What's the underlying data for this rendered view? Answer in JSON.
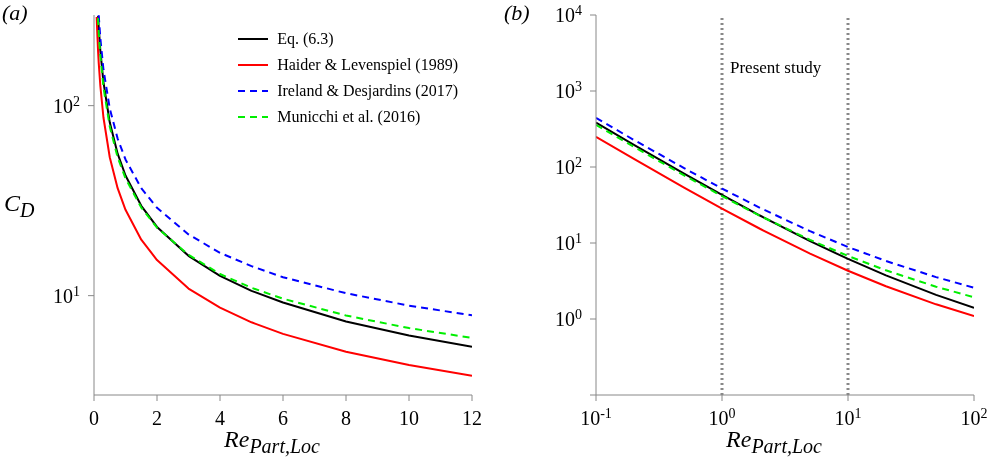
{
  "chart_data": [
    {
      "type": "line",
      "title": "(a)",
      "xlabel": "Re$_{Part,Loc}$",
      "ylabel": "C$_{D}$",
      "log": "y",
      "legend": "top right",
      "xlim": [
        0,
        12
      ],
      "xticks": [
        0,
        2,
        4,
        6,
        8,
        10,
        12
      ],
      "ylim": [
        3,
        300
      ],
      "yticks": [
        {
          "value": 10,
          "label": "10$^{1}$"
        },
        {
          "value": 100,
          "label": "10$^{2}$"
        }
      ],
      "series": [
        {
          "name": "Eq. (6.3)",
          "color": "#000000",
          "line_style": "solid",
          "x": [
            0.13,
            0.15,
            0.2,
            0.3,
            0.5,
            0.75,
            1,
            1.5,
            2,
            3,
            4,
            5,
            6,
            8,
            10,
            12
          ],
          "values": [
            297,
            259,
            196,
            133,
            81.7,
            55.9,
            42.9,
            29.7,
            23.0,
            16.2,
            12.7,
            10.6,
            9.2,
            7.31,
            6.17,
            5.38
          ]
        },
        {
          "name": "Haider & Levenspiel (1989)",
          "color": "#ff0000",
          "line_style": "solid",
          "x": [
            0.085,
            0.1,
            0.13,
            0.15,
            0.2,
            0.3,
            0.5,
            0.75,
            1,
            1.5,
            2,
            3,
            4,
            5,
            6,
            8,
            10,
            12
          ],
          "values": [
            293,
            250,
            193,
            168,
            128,
            86.6,
            53.5,
            36.8,
            28.3,
            19.7,
            15.4,
            10.9,
            8.65,
            7.24,
            6.29,
            5.07,
            4.31,
            3.79
          ]
        },
        {
          "name": "Ireland & Desjardins (2017)",
          "color": "#0000ff",
          "line_style": "dashed",
          "x": [
            0.15,
            0.2,
            0.3,
            0.5,
            0.75,
            1,
            1.5,
            2,
            3,
            4,
            5,
            6,
            8,
            10,
            12
          ],
          "values": [
            299,
            227,
            155,
            96.7,
            67.1,
            52.1,
            36.8,
            29.0,
            21.0,
            16.8,
            14.3,
            12.5,
            10.3,
            8.86,
            7.88
          ]
        },
        {
          "name": "Municchi et al. (2016)",
          "color": "#00ee00",
          "line_style": "dashed",
          "x": [
            0.125,
            0.15,
            0.2,
            0.3,
            0.5,
            0.75,
            1,
            1.5,
            2,
            3,
            4,
            5,
            6,
            8,
            10,
            12
          ],
          "values": [
            289,
            243,
            184,
            125,
            77.6,
            53.5,
            41.4,
            29.1,
            22.8,
            16.4,
            13.0,
            11.0,
            9.64,
            7.86,
            6.75,
            5.99
          ]
        }
      ]
    },
    {
      "type": "line",
      "title": "(b)",
      "xlabel": "Re$_{Part,Loc}$",
      "log": "xy",
      "xlim": [
        0.1,
        100
      ],
      "xticks": [
        {
          "value": 0.1,
          "label": "10$^{-1}$"
        },
        {
          "value": 1,
          "label": "10$^{0}$"
        },
        {
          "value": 10,
          "label": "10$^{1}$"
        },
        {
          "value": 100,
          "label": "10$^{2}$"
        }
      ],
      "ylim": [
        0.1,
        10000
      ],
      "yticks": [
        {
          "value": 0.1,
          "label": null
        },
        {
          "value": 1,
          "label": "10$^{0}$"
        },
        {
          "value": 10,
          "label": "10$^{1}$"
        },
        {
          "value": 100,
          "label": "10$^{2}$"
        },
        {
          "value": 1000,
          "label": "10$^{3}$"
        },
        {
          "value": 10000,
          "label": "10$^{4}$"
        }
      ],
      "ref_lines": [
        {
          "axis": "x",
          "value": 1,
          "color": "#888888",
          "line_style": "dotted"
        },
        {
          "axis": "x",
          "value": 10,
          "color": "#888888",
          "line_style": "dotted"
        }
      ],
      "annotations": [
        "Present study"
      ],
      "series": [
        {
          "color": "#0000ff",
          "line_style": "dashed",
          "x": [
            0.1,
            0.2,
            0.5,
            1,
            2,
            5,
            10,
            20,
            50,
            100
          ],
          "values": [
            442,
            227,
            96.7,
            52.1,
            29.0,
            14.3,
            8.86,
            5.8,
            3.56,
            2.58
          ]
        },
        {
          "color": "#000000",
          "line_style": "solid",
          "x": [
            0.1,
            0.2,
            0.5,
            1,
            2,
            5,
            10,
            20,
            50,
            100
          ],
          "values": [
            384,
            196,
            81.7,
            42.9,
            23.0,
            10.6,
            6.17,
            3.75,
            2.08,
            1.4
          ]
        },
        {
          "color": "#00ee00",
          "line_style": "dashed",
          "x": [
            0.1,
            0.2,
            0.5,
            1,
            2,
            5,
            10,
            20,
            50,
            100
          ],
          "values": [
            359,
            184,
            77.6,
            41.4,
            22.8,
            11.0,
            6.75,
            4.37,
            2.66,
            1.93
          ]
        },
        {
          "color": "#ff0000",
          "line_style": "solid",
          "x": [
            0.1,
            0.2,
            0.5,
            1,
            2,
            5,
            10,
            20,
            50,
            100
          ],
          "values": [
            250,
            128,
            53.5,
            28.3,
            15.4,
            7.24,
            4.31,
            2.7,
            1.56,
            1.09
          ]
        }
      ]
    }
  ]
}
